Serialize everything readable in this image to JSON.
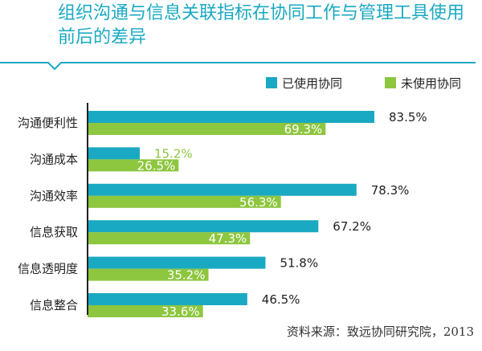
{
  "title": "组织沟通与信息关联指标在协同工作与管理工具使用前后的差异",
  "source": "资料来源：致远协同研究院，2013",
  "colors": {
    "accent": "#1aa9c2",
    "used": "#1aa9c2",
    "unused": "#8dc63f",
    "axis": "#222222"
  },
  "chart_data": {
    "type": "bar",
    "orientation": "horizontal",
    "categories": [
      "沟通便利性",
      "沟通成本",
      "沟通效率",
      "信息获取",
      "信息透明度",
      "信息整合"
    ],
    "series": [
      {
        "name": "已使用协同",
        "values": [
          83.5,
          15.2,
          78.3,
          67.2,
          51.8,
          46.5
        ],
        "labels": [
          "83.5%",
          "15.2%",
          "78.3%",
          "67.2%",
          "51.8%",
          "46.5%"
        ]
      },
      {
        "name": "未使用协同",
        "values": [
          69.3,
          26.5,
          56.3,
          47.3,
          35.2,
          33.6
        ],
        "labels": [
          "69.3%",
          "26.5%",
          "56.3%",
          "47.3%",
          "35.2%",
          "33.6%"
        ]
      }
    ],
    "xlim": [
      0,
      100
    ],
    "legend": "top-right",
    "grid": false
  }
}
